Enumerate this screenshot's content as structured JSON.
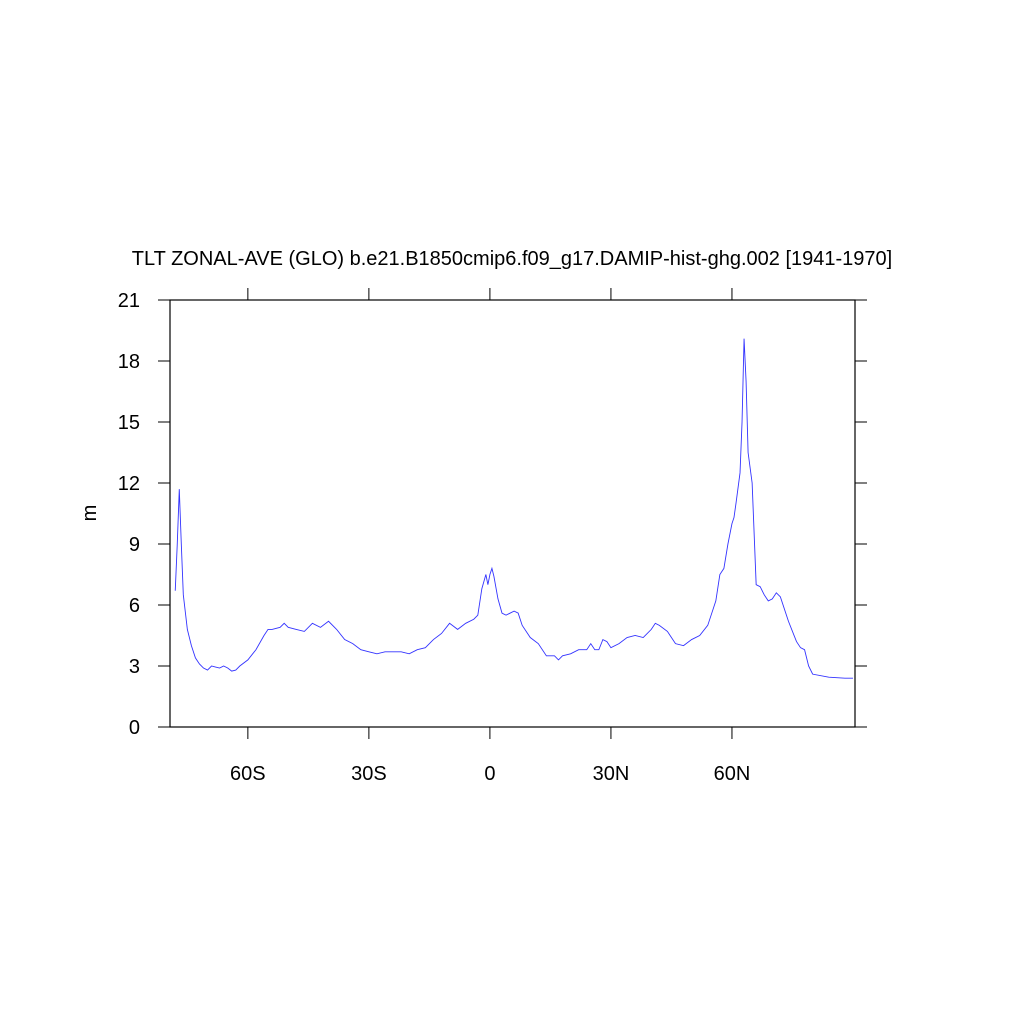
{
  "chart_data": {
    "type": "line",
    "title": "TLT ZONAL-AVE (GLO) b.e21.B1850cmip6.f09_g17.DAMIP-hist-ghg.002 [1941-1970]",
    "ylabel": "m",
    "x": [
      -78,
      -77.5,
      -77,
      -76.5,
      -76,
      -75,
      -74,
      -73,
      -72,
      -71,
      -70,
      -69,
      -68,
      -67,
      -66,
      -65,
      -64,
      -63,
      -62,
      -60,
      -58,
      -56,
      -55,
      -54,
      -52,
      -51,
      -50,
      -48,
      -46,
      -44,
      -42,
      -40,
      -38,
      -36,
      -34,
      -32,
      -30,
      -28,
      -26,
      -24,
      -22,
      -20,
      -18,
      -16,
      -14,
      -12,
      -10,
      -8,
      -6,
      -4,
      -3,
      -2,
      -1,
      -0.5,
      0,
      0.5,
      1,
      2,
      3,
      4,
      6,
      7,
      8,
      10,
      12,
      14,
      16,
      17,
      18,
      20,
      22,
      24,
      25,
      26,
      27,
      28,
      29,
      30,
      32,
      34,
      36,
      38,
      40,
      41,
      42,
      44,
      46,
      48,
      50,
      52,
      54,
      56,
      57,
      58,
      59,
      60,
      60.5,
      61,
      62,
      62.5,
      63,
      63.5,
      64,
      65,
      66,
      67,
      68,
      69,
      70,
      71,
      72,
      74,
      76,
      77,
      78,
      79,
      80,
      84,
      88,
      90
    ],
    "series": [
      {
        "name": "TLT",
        "color": "#3333ff",
        "values": [
          6.7,
          9,
          11.7,
          9,
          6.5,
          4.8,
          4,
          3.4,
          3.1,
          2.9,
          2.8,
          3.0,
          2.95,
          2.9,
          3.0,
          2.9,
          2.75,
          2.8,
          3.0,
          3.3,
          3.8,
          4.5,
          4.8,
          4.8,
          4.9,
          5.1,
          4.9,
          4.8,
          4.7,
          5.1,
          4.9,
          5.2,
          4.8,
          4.3,
          4.1,
          3.8,
          3.7,
          3.6,
          3.7,
          3.7,
          3.7,
          3.6,
          3.8,
          3.9,
          4.3,
          4.6,
          5.1,
          4.8,
          5.1,
          5.3,
          5.5,
          6.8,
          7.5,
          7.0,
          7.5,
          7.8,
          7.4,
          6.3,
          5.6,
          5.5,
          5.7,
          5.6,
          5.0,
          4.4,
          4.1,
          3.5,
          3.5,
          3.3,
          3.5,
          3.6,
          3.8,
          3.8,
          4.1,
          3.8,
          3.8,
          4.3,
          4.2,
          3.9,
          4.1,
          4.4,
          4.5,
          4.4,
          4.8,
          5.1,
          5.0,
          4.7,
          4.1,
          4.0,
          4.3,
          4.5,
          5.0,
          6.2,
          7.5,
          7.8,
          9.0,
          10.0,
          10.3,
          11.0,
          12.5,
          15,
          19.1,
          17,
          13.5,
          12.0,
          7.0,
          6.9,
          6.5,
          6.2,
          6.3,
          6.6,
          6.4,
          5.2,
          4.2,
          3.9,
          3.8,
          3.0,
          2.6,
          2.45,
          2.4,
          2.4
        ]
      }
    ],
    "xlim": [
      -79.3,
      90.5
    ],
    "xticks": [
      {
        "value": -60,
        "label": "60S"
      },
      {
        "value": -30,
        "label": "30S"
      },
      0,
      {
        "value": 30,
        "label": "30N"
      },
      {
        "value": 60,
        "label": "60N"
      }
    ],
    "ylim": [
      0,
      21
    ],
    "yticks": [
      0,
      3,
      6,
      9,
      12,
      15,
      18,
      21
    ]
  }
}
